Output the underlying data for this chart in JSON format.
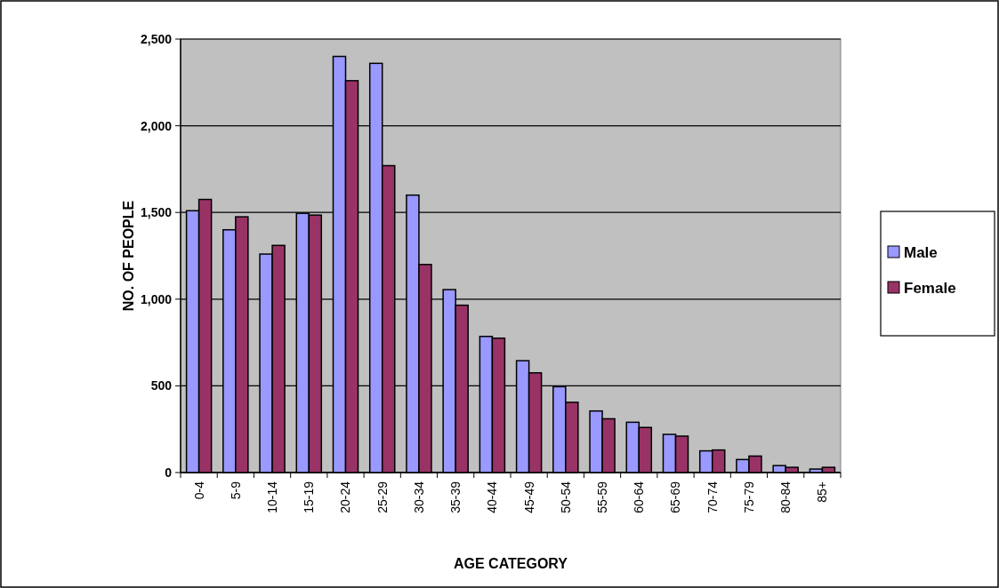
{
  "chart_data": {
    "type": "bar",
    "xlabel": "AGE CATEGORY",
    "ylabel": "NO. OF PEOPLE",
    "categories": [
      "0-4",
      "5-9",
      "10-14",
      "15-19",
      "20-24",
      "25-29",
      "30-34",
      "35-39",
      "40-44",
      "45-49",
      "50-54",
      "55-59",
      "60-64",
      "65-69",
      "70-74",
      "75-79",
      "80-84",
      "85+"
    ],
    "series": [
      {
        "name": "Male",
        "color": "#9999ff",
        "values": [
          1510,
          1400,
          1260,
          1495,
          2400,
          2360,
          1600,
          1055,
          785,
          645,
          495,
          355,
          290,
          220,
          125,
          75,
          40,
          20
        ]
      },
      {
        "name": "Female",
        "color": "#993366",
        "values": [
          1575,
          1475,
          1310,
          1485,
          2260,
          1770,
          1200,
          965,
          775,
          575,
          405,
          310,
          260,
          210,
          130,
          95,
          30,
          30
        ]
      }
    ],
    "ylim": [
      0,
      2500
    ],
    "yticks": [
      0,
      500,
      {
        "value": 1000,
        "label": "1,000"
      },
      {
        "value": 1500,
        "label": "1,500"
      },
      {
        "value": 2000,
        "label": "2,000"
      },
      {
        "value": 2500,
        "label": "2,500"
      }
    ],
    "grid": "y",
    "legend": "right"
  }
}
